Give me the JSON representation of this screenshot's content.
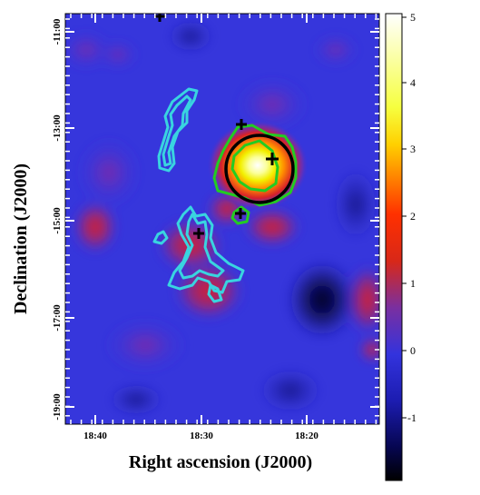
{
  "chart_data": {
    "type": "heatmap",
    "title": "",
    "xlabel": "Right ascension (J2000)",
    "ylabel": "Declination (J2000)",
    "x_ticks": [
      "18:40",
      "18:30",
      "18:20"
    ],
    "y_ticks": [
      "-11:00",
      "-13:00",
      "-15:00",
      "-17:00",
      "-19:00"
    ],
    "colorbar": {
      "ticks": [
        "5",
        "4",
        "3",
        "2",
        "1",
        "0",
        "-1"
      ],
      "range": [
        -2.0,
        5.1
      ],
      "colormap": [
        "#000000",
        "#06064f",
        "#1c1cb0",
        "#3333dd",
        "#7a2fa0",
        "#d82818",
        "#ff3000",
        "#ff7a00",
        "#ffd000",
        "#f6ff40",
        "#ffffff"
      ]
    },
    "source_region": {
      "type": "circle",
      "color": "#000000"
    },
    "contour_sets": [
      {
        "color": "#39d4e0"
      },
      {
        "color": "#22cc22"
      }
    ],
    "markers": {
      "symbol": "+",
      "count": 5,
      "color": "#000000"
    },
    "features": [
      {
        "kind": "bright spot",
        "ra": "18:25",
        "dec": "-13:45",
        "value": 5.0
      },
      {
        "kind": "moderate spot",
        "ra": "18:29",
        "dec": "-17:00",
        "value": 1.3
      },
      {
        "kind": "moderate spot",
        "ra": "18:30",
        "dec": "-15:30",
        "value": 1.2
      },
      {
        "kind": "moderate spot",
        "ra": "18:38",
        "dec": "-14:30",
        "value": 0.9
      },
      {
        "kind": "deficit",
        "ra": "18:18",
        "dec": "-17:00",
        "value": -1.9
      }
    ]
  }
}
